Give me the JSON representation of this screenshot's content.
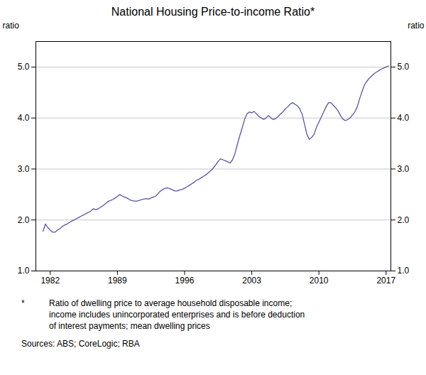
{
  "chart_data": {
    "type": "line",
    "title": "National Housing Price-to-income Ratio*",
    "ylabel": "ratio",
    "y2label": "ratio",
    "footnote_marker": "*",
    "footnote": "Ratio of dwelling price to average household disposable income;\nincome includes unincorporated enterprises and is before deduction\nof interest payments; mean dwelling prices",
    "source": "Sources: ABS; CoreLogic; RBA",
    "color": "#5555aa",
    "grid": true,
    "xlim": [
      1980.5,
      2017.5
    ],
    "ylim": [
      1,
      5.5
    ],
    "xticks": [
      1982,
      1989,
      1996,
      2003,
      2010,
      2017
    ],
    "yticks": [
      1,
      2,
      3,
      4,
      5
    ],
    "x": [
      1981.25,
      1981.5,
      1981.75,
      1982.0,
      1982.25,
      1982.5,
      1982.75,
      1983.0,
      1983.25,
      1983.5,
      1983.75,
      1984.0,
      1984.25,
      1984.5,
      1984.75,
      1985.0,
      1985.25,
      1985.5,
      1985.75,
      1986.0,
      1986.25,
      1986.5,
      1986.75,
      1987.0,
      1987.25,
      1987.5,
      1987.75,
      1988.0,
      1988.25,
      1988.5,
      1988.75,
      1989.0,
      1989.25,
      1989.5,
      1989.75,
      1990.0,
      1990.25,
      1990.5,
      1990.75,
      1991.0,
      1991.25,
      1991.5,
      1991.75,
      1992.0,
      1992.25,
      1992.5,
      1992.75,
      1993.0,
      1993.25,
      1993.5,
      1993.75,
      1994.0,
      1994.25,
      1994.5,
      1994.75,
      1995.0,
      1995.25,
      1995.5,
      1995.75,
      1996.0,
      1996.25,
      1996.5,
      1996.75,
      1997.0,
      1997.25,
      1997.5,
      1997.75,
      1998.0,
      1998.25,
      1998.5,
      1998.75,
      1999.0,
      1999.25,
      1999.5,
      1999.75,
      2000.0,
      2000.25,
      2000.5,
      2000.75,
      2001.0,
      2001.25,
      2001.5,
      2001.75,
      2002.0,
      2002.25,
      2002.5,
      2002.75,
      2003.0,
      2003.25,
      2003.5,
      2003.75,
      2004.0,
      2004.25,
      2004.5,
      2004.75,
      2005.0,
      2005.25,
      2005.5,
      2005.75,
      2006.0,
      2006.25,
      2006.5,
      2006.75,
      2007.0,
      2007.25,
      2007.5,
      2007.75,
      2008.0,
      2008.25,
      2008.5,
      2008.75,
      2009.0,
      2009.25,
      2009.5,
      2009.75,
      2010.0,
      2010.25,
      2010.5,
      2010.75,
      2011.0,
      2011.25,
      2011.5,
      2011.75,
      2012.0,
      2012.25,
      2012.5,
      2012.75,
      2013.0,
      2013.25,
      2013.5,
      2013.75,
      2014.0,
      2014.25,
      2014.5,
      2014.75,
      2015.0,
      2015.25,
      2015.5,
      2015.75,
      2016.0,
      2016.25,
      2016.5,
      2016.75,
      2017.0,
      2017.25
    ],
    "values": [
      1.78,
      1.92,
      1.85,
      1.8,
      1.76,
      1.76,
      1.8,
      1.83,
      1.87,
      1.9,
      1.92,
      1.95,
      1.98,
      2.0,
      2.03,
      2.05,
      2.08,
      2.1,
      2.13,
      2.15,
      2.18,
      2.22,
      2.2,
      2.22,
      2.25,
      2.28,
      2.32,
      2.36,
      2.38,
      2.4,
      2.43,
      2.46,
      2.5,
      2.47,
      2.45,
      2.43,
      2.4,
      2.38,
      2.37,
      2.37,
      2.38,
      2.4,
      2.41,
      2.42,
      2.41,
      2.43,
      2.45,
      2.47,
      2.52,
      2.57,
      2.6,
      2.62,
      2.63,
      2.61,
      2.59,
      2.57,
      2.57,
      2.59,
      2.6,
      2.62,
      2.65,
      2.68,
      2.71,
      2.74,
      2.78,
      2.8,
      2.83,
      2.86,
      2.89,
      2.93,
      2.97,
      3.02,
      3.08,
      3.15,
      3.2,
      3.18,
      3.16,
      3.14,
      3.12,
      3.18,
      3.3,
      3.48,
      3.65,
      3.8,
      3.97,
      4.08,
      4.12,
      4.1,
      4.13,
      4.08,
      4.03,
      4.0,
      3.97,
      4.0,
      4.05,
      4.0,
      3.97,
      3.99,
      4.03,
      4.08,
      4.12,
      4.18,
      4.22,
      4.27,
      4.3,
      4.27,
      4.24,
      4.18,
      4.08,
      3.88,
      3.68,
      3.58,
      3.62,
      3.68,
      3.82,
      3.92,
      4.02,
      4.12,
      4.22,
      4.3,
      4.3,
      4.25,
      4.2,
      4.14,
      4.05,
      3.98,
      3.95,
      3.97,
      4.0,
      4.06,
      4.12,
      4.22,
      4.38,
      4.52,
      4.65,
      4.72,
      4.78,
      4.82,
      4.87,
      4.9,
      4.93,
      4.96,
      4.98,
      5.0,
      5.02
    ]
  }
}
